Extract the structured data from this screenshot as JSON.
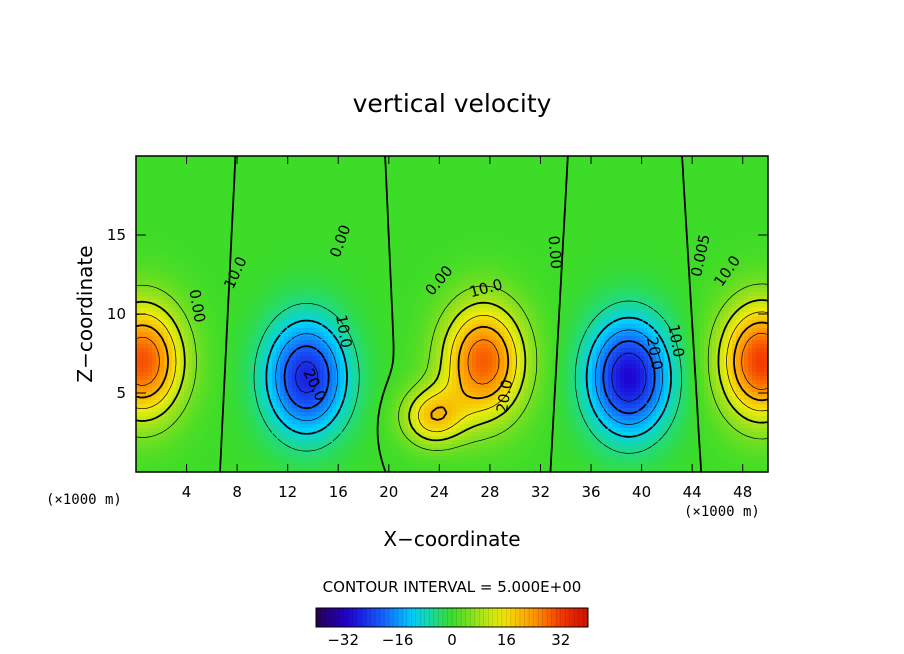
{
  "chart_data": {
    "type": "heatmap",
    "title": "vertical velocity",
    "xlabel": "X−coordinate",
    "ylabel": "Z−coordinate",
    "x_unit": "(×1000 m)",
    "y_unit": "(×1000 m)",
    "xlim": [
      0,
      50
    ],
    "ylim": [
      0,
      20
    ],
    "x_ticks": [
      4,
      8,
      12,
      16,
      20,
      24,
      28,
      32,
      36,
      40,
      44,
      48
    ],
    "x_tick_labels": [
      "4",
      "8",
      "12",
      "16",
      "20",
      "24",
      "28",
      "32",
      "36",
      "40",
      "44",
      "48"
    ],
    "y_ticks": [
      5,
      10,
      15
    ],
    "y_tick_labels": [
      "5",
      "10",
      "15"
    ],
    "contour_interval_text": "CONTOUR INTERVAL = 5.000E+00",
    "colorbar": {
      "min": -40,
      "max": 40,
      "ticks": [
        -32,
        -16,
        0,
        16,
        32
      ],
      "tick_labels": [
        "−32",
        "−16",
        "0",
        "16",
        "32"
      ]
    },
    "features": [
      {
        "kind": "updraft",
        "x": 0.5,
        "z": 7.0,
        "peak": 30
      },
      {
        "kind": "downdraft",
        "x": 13.5,
        "z": 6.0,
        "peak": -27
      },
      {
        "kind": "updraft",
        "x": 27.5,
        "z": 7.0,
        "peak": 29
      },
      {
        "kind": "updraft",
        "x": 23.5,
        "z": 3.5,
        "peak": 18
      },
      {
        "kind": "downdraft",
        "x": 39.0,
        "z": 6.0,
        "peak": -30
      },
      {
        "kind": "updraft",
        "x": 49.5,
        "z": 7.0,
        "peak": 32
      }
    ],
    "contour_labels": [
      {
        "text": "0.00",
        "x": 4.8,
        "z": 10.5,
        "rotate": 80
      },
      {
        "text": "10.0",
        "x": 7.9,
        "z": 12.6,
        "rotate": -65
      },
      {
        "text": "0.00",
        "x": 16.2,
        "z": 14.6,
        "rotate": -70
      },
      {
        "text": "10.0",
        "x": 16.4,
        "z": 8.9,
        "rotate": 80
      },
      {
        "text": "20.0",
        "x": 14.1,
        "z": 5.5,
        "rotate": 65
      },
      {
        "text": "0.00",
        "x": 24.0,
        "z": 12.1,
        "rotate": -50
      },
      {
        "text": "10.0",
        "x": 27.7,
        "z": 11.6,
        "rotate": -15
      },
      {
        "text": "20.0",
        "x": 29.2,
        "z": 4.8,
        "rotate": -80
      },
      {
        "text": "0.00",
        "x": 33.1,
        "z": 13.9,
        "rotate": 85
      },
      {
        "text": "10.0",
        "x": 42.7,
        "z": 8.3,
        "rotate": 80
      },
      {
        "text": "20.0",
        "x": 41.0,
        "z": 7.5,
        "rotate": 80
      },
      {
        "text": "0.005",
        "x": 44.7,
        "z": 13.7,
        "rotate": -78
      },
      {
        "text": "10.0",
        "x": 46.8,
        "z": 12.7,
        "rotate": -55
      }
    ]
  }
}
